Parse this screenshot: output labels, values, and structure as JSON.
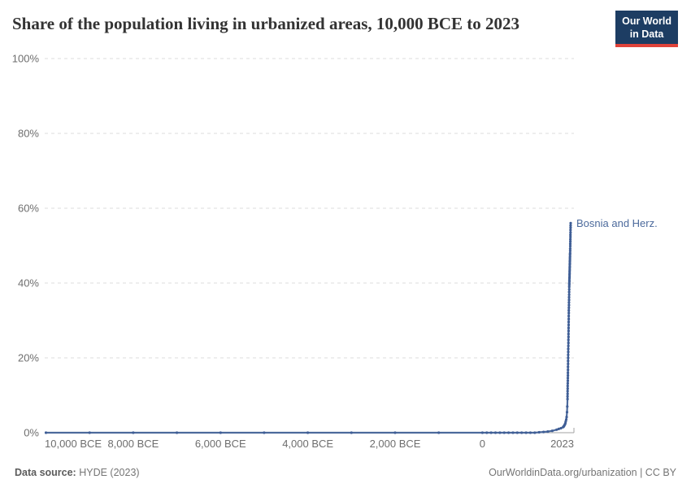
{
  "header": {
    "title": "Share of the population living in urbanized areas, 10,000 BCE to 2023",
    "logo": {
      "line1": "Our World",
      "line2": "in Data"
    }
  },
  "chart_data": {
    "type": "line",
    "title": "Share of the population living in urbanized areas, 10,000 BCE to 2023",
    "xlabel": "",
    "ylabel": "",
    "xlim": [
      -10000,
      2023
    ],
    "ylim": [
      0,
      100
    ],
    "grid": "horizontal-dashed",
    "legend_position": "end-of-line-label",
    "x_ticks": [
      {
        "value": -10000,
        "label": "10,000 BCE"
      },
      {
        "value": -8000,
        "label": "8,000 BCE"
      },
      {
        "value": -6000,
        "label": "6,000 BCE"
      },
      {
        "value": -4000,
        "label": "4,000 BCE"
      },
      {
        "value": -2000,
        "label": "2,000 BCE"
      },
      {
        "value": 0,
        "label": "0"
      },
      {
        "value": 2023,
        "label": "2023"
      }
    ],
    "y_ticks": [
      {
        "value": 0,
        "label": "0%"
      },
      {
        "value": 20,
        "label": "20%"
      },
      {
        "value": 40,
        "label": "40%"
      },
      {
        "value": 60,
        "label": "60%"
      },
      {
        "value": 80,
        "label": "80%"
      },
      {
        "value": 100,
        "label": "100%"
      }
    ],
    "series": [
      {
        "name": "Bosnia and Herz.",
        "color": "#4c6a9c",
        "marker": "circle",
        "points": [
          [
            -10000,
            0
          ],
          [
            -9000,
            0
          ],
          [
            -8000,
            0
          ],
          [
            -7000,
            0
          ],
          [
            -6000,
            0
          ],
          [
            -5000,
            0
          ],
          [
            -4000,
            0
          ],
          [
            -3000,
            0
          ],
          [
            -2000,
            0
          ],
          [
            -1000,
            0
          ],
          [
            0,
            0
          ],
          [
            100,
            0
          ],
          [
            200,
            0
          ],
          [
            300,
            0
          ],
          [
            400,
            0
          ],
          [
            500,
            0
          ],
          [
            600,
            0
          ],
          [
            700,
            0
          ],
          [
            800,
            0
          ],
          [
            900,
            0
          ],
          [
            1000,
            0
          ],
          [
            1100,
            0
          ],
          [
            1200,
            0
          ],
          [
            1300,
            0.1
          ],
          [
            1400,
            0.2
          ],
          [
            1500,
            0.3
          ],
          [
            1600,
            0.5
          ],
          [
            1700,
            0.8
          ],
          [
            1750,
            1
          ],
          [
            1800,
            1.2
          ],
          [
            1850,
            1.5
          ],
          [
            1860,
            1.6
          ],
          [
            1870,
            1.8
          ],
          [
            1880,
            2
          ],
          [
            1890,
            2.2
          ],
          [
            1900,
            2.5
          ],
          [
            1910,
            3
          ],
          [
            1920,
            3.5
          ],
          [
            1930,
            4.2
          ],
          [
            1940,
            5.5
          ],
          [
            1945,
            7
          ],
          [
            1950,
            9
          ],
          [
            1951,
            9.7
          ],
          [
            1952,
            10.4
          ],
          [
            1953,
            11.1
          ],
          [
            1954,
            11.8
          ],
          [
            1955,
            12.5
          ],
          [
            1956,
            13.2
          ],
          [
            1957,
            13.9
          ],
          [
            1958,
            14.6
          ],
          [
            1959,
            15.3
          ],
          [
            1960,
            16
          ],
          [
            1961,
            16.8
          ],
          [
            1962,
            17.6
          ],
          [
            1963,
            18.4
          ],
          [
            1964,
            19.2
          ],
          [
            1965,
            20
          ],
          [
            1966,
            20.8
          ],
          [
            1967,
            21.6
          ],
          [
            1968,
            22.4
          ],
          [
            1969,
            23.2
          ],
          [
            1970,
            24
          ],
          [
            1971,
            24.8
          ],
          [
            1972,
            25.6
          ],
          [
            1973,
            26.4
          ],
          [
            1974,
            27.2
          ],
          [
            1975,
            28
          ],
          [
            1976,
            28.8
          ],
          [
            1977,
            29.6
          ],
          [
            1978,
            30.4
          ],
          [
            1979,
            31.2
          ],
          [
            1980,
            32
          ],
          [
            1981,
            32.7
          ],
          [
            1982,
            33.4
          ],
          [
            1983,
            34.1
          ],
          [
            1984,
            34.8
          ],
          [
            1985,
            35.5
          ],
          [
            1986,
            36.2
          ],
          [
            1987,
            36.9
          ],
          [
            1988,
            37.6
          ],
          [
            1989,
            38.3
          ],
          [
            1990,
            39
          ],
          [
            1991,
            39.5
          ],
          [
            1992,
            39.9
          ],
          [
            1993,
            40.4
          ],
          [
            1994,
            40.8
          ],
          [
            1995,
            41.3
          ],
          [
            1996,
            41.7
          ],
          [
            1997,
            42.2
          ],
          [
            1998,
            42.6
          ],
          [
            1999,
            43.1
          ],
          [
            2000,
            43.5
          ],
          [
            2001,
            44
          ],
          [
            2002,
            44.4
          ],
          [
            2003,
            44.9
          ],
          [
            2004,
            45.3
          ],
          [
            2005,
            45.8
          ],
          [
            2006,
            46.2
          ],
          [
            2007,
            46.7
          ],
          [
            2008,
            47.1
          ],
          [
            2009,
            47.6
          ],
          [
            2010,
            48
          ],
          [
            2011,
            48.6
          ],
          [
            2012,
            49.2
          ],
          [
            2013,
            49.9
          ],
          [
            2014,
            50.5
          ],
          [
            2015,
            51.1
          ],
          [
            2016,
            51.7
          ],
          [
            2017,
            52.3
          ],
          [
            2018,
            52.9
          ],
          [
            2019,
            53.5
          ],
          [
            2020,
            54.2
          ],
          [
            2021,
            54.8
          ],
          [
            2022,
            55.4
          ],
          [
            2023,
            56
          ]
        ]
      }
    ]
  },
  "footer": {
    "source_label": "Data source:",
    "source_value": "HYDE (2023)",
    "attribution": "OurWorldinData.org/urbanization | CC BY"
  },
  "colors": {
    "line": "#4c6a9c",
    "marker": "#3f5e96",
    "series_label": "#4c6a9c",
    "grid": "#dddddd",
    "axis": "#a3a3a3",
    "tick_label": "#6e6e6e",
    "title": "#333333",
    "footer_text": "#757575",
    "logo_bg": "#1d3d63",
    "logo_accent": "#e0433a",
    "background": "#ffffff"
  }
}
